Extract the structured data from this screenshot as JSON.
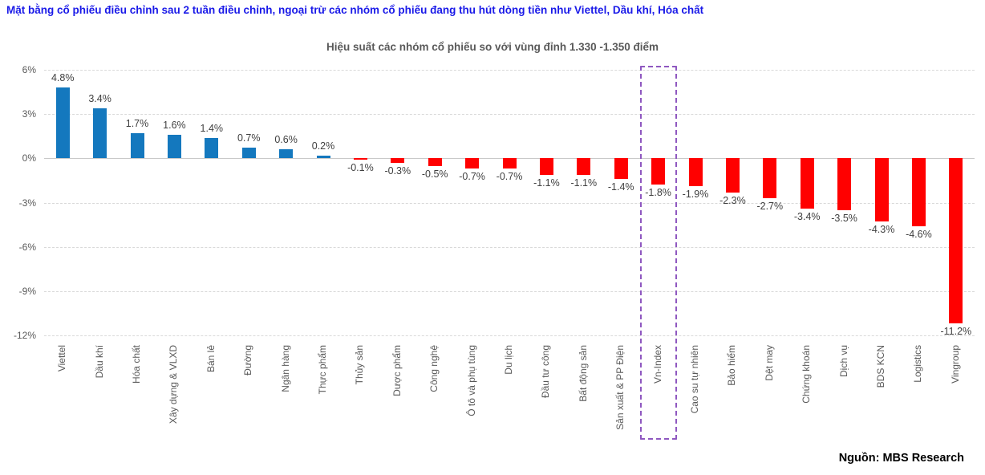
{
  "page": {
    "main_title": "Mặt bằng cổ phiếu điều chỉnh sau 2 tuần điều chỉnh, ngoại trừ các nhóm cổ phiếu đang thu hút dòng tiền như Viettel, Dầu khí, Hóa chất",
    "source": "Nguồn: MBS Research"
  },
  "chart_data": {
    "type": "bar",
    "title": "Hiệu suất các nhóm cổ phiếu so với vùng đỉnh 1.330 -1.350 điểm",
    "categories": [
      "Viettel",
      "Dầu khí",
      "Hóa chất",
      "Xây dựng & VLXD",
      "Bán lẻ",
      "Đường",
      "Ngân hàng",
      "Thực phẩm",
      "Thủy sản",
      "Dược phẩm",
      "Công nghệ",
      "Ô tô và phụ tùng",
      "Du lịch",
      "Đầu tư công",
      "Bất động sản",
      "Sản xuất & PP Điện",
      "Vn-Index",
      "Cao su tự nhiên",
      "Bảo hiểm",
      "Dệt may",
      "Chứng khoán",
      "Dịch vụ",
      "BDS KCN",
      "Logistics",
      "Vingroup"
    ],
    "values": [
      4.8,
      3.4,
      1.7,
      1.6,
      1.4,
      0.7,
      0.6,
      0.2,
      -0.1,
      -0.3,
      -0.5,
      -0.7,
      -0.7,
      -1.1,
      -1.1,
      -1.4,
      -1.8,
      -1.9,
      -2.3,
      -2.7,
      -3.4,
      -3.5,
      -4.3,
      -4.6,
      -11.2
    ],
    "value_labels": [
      "4.8%",
      "3.4%",
      "1.7%",
      "1.6%",
      "1.4%",
      "0.7%",
      "0.6%",
      "0.2%",
      "-0.1%",
      "-0.3%",
      "-0.5%",
      "-0.7%",
      "-0.7%",
      "-1.1%",
      "-1.1%",
      "-1.4%",
      "-1.8%",
      "-1.9%",
      "-2.3%",
      "-2.7%",
      "-3.4%",
      "-3.5%",
      "-4.3%",
      "-4.6%",
      "-11.2%"
    ],
    "highlight_category": "Vn-Index",
    "y_ticks": [
      {
        "label": "6%",
        "value": 6
      },
      {
        "label": "3%",
        "value": 3
      },
      {
        "label": "0%",
        "value": 0
      },
      {
        "label": "-3%",
        "value": -3
      },
      {
        "label": "-6%",
        "value": -6
      },
      {
        "label": "-9%",
        "value": -9
      },
      {
        "label": "-12%",
        "value": -12
      }
    ],
    "ylim": [
      -12,
      6
    ],
    "grid": "dashed-horizontal",
    "legend": "none",
    "colors": {
      "positive_bar": "#1478be",
      "negative_bar": "#ff0000",
      "highlight_box": "#8f58c0",
      "title_blue": "#1a1ae8",
      "axis_text": "#595959",
      "value_text": "#404040"
    }
  }
}
